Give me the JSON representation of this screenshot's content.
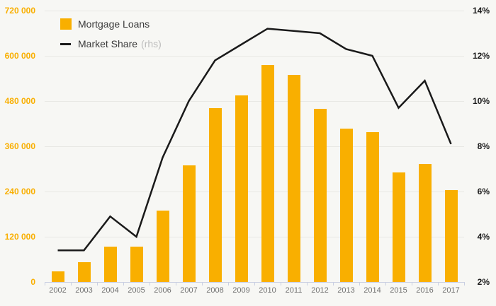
{
  "chart_data": {
    "type": "bar+line",
    "categories": [
      "2002",
      "2003",
      "2004",
      "2005",
      "2006",
      "2007",
      "2008",
      "2009",
      "2010",
      "2011",
      "2012",
      "2013",
      "2014",
      "2015",
      "2016",
      "2017"
    ],
    "series": [
      {
        "name": "Mortgage Loans",
        "type": "bar",
        "axis": "left",
        "color": "#F9AF00",
        "values": [
          28000,
          53000,
          93000,
          93000,
          190000,
          310000,
          462000,
          495000,
          575000,
          550000,
          459000,
          407000,
          397000,
          290000,
          314000,
          244000
        ]
      },
      {
        "name": "Market Share",
        "type": "line",
        "axis": "right",
        "color": "#1A1A1A",
        "values": [
          3.4,
          3.4,
          4.9,
          4.0,
          7.5,
          10.0,
          11.8,
          12.5,
          13.2,
          13.1,
          13.0,
          12.3,
          12.0,
          9.7,
          10.9,
          8.1
        ]
      }
    ],
    "left_axis": {
      "min": 0,
      "max": 720000,
      "tick_labels": [
        "720 000",
        "600 000",
        "480 000",
        "360 000",
        "240 000",
        "120 000",
        "0"
      ],
      "label_color": "#F9AF00",
      "grid": true
    },
    "right_axis": {
      "min": 2,
      "max": 14,
      "unit": "%",
      "tick_labels": [
        "14%",
        "12%",
        "10%",
        "8%",
        "6%",
        "4%",
        "2%"
      ],
      "label_color": "#1A1A1A"
    },
    "legend": {
      "position": "top-left",
      "items": [
        {
          "label": "Mortgage Loans",
          "note": ""
        },
        {
          "label": "Market Share",
          "note": "(rhs)"
        }
      ]
    }
  },
  "colors": {
    "background": "#F7F7F4",
    "bar": "#F9AF00",
    "line": "#1A1A1A",
    "gridline": "#E8E8E4",
    "axis": "#C9CFE2",
    "x_labels": "#6F6F6F"
  }
}
